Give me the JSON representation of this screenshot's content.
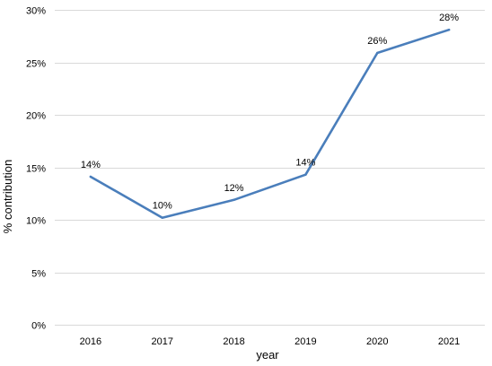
{
  "chart_data": {
    "type": "line",
    "title": "",
    "xlabel": "year",
    "ylabel": "% contribution",
    "categories": [
      "2016",
      "2017",
      "2018",
      "2019",
      "2020",
      "2021"
    ],
    "series": [
      {
        "values": [
          14.1,
          10.2,
          11.9,
          14.3,
          25.9,
          28.1
        ],
        "data_labels": [
          "14%",
          "10%",
          "12%",
          "14%",
          "26%",
          "28%"
        ],
        "color": "#4a7ebb"
      }
    ],
    "ylim": [
      0,
      30
    ],
    "y_ticks": [
      0,
      5,
      10,
      15,
      20,
      25,
      30
    ],
    "y_tick_labels": [
      "0%",
      "5%",
      "10%",
      "15%",
      "20%",
      "25%",
      "30%"
    ],
    "grid": true,
    "legend": "none"
  }
}
